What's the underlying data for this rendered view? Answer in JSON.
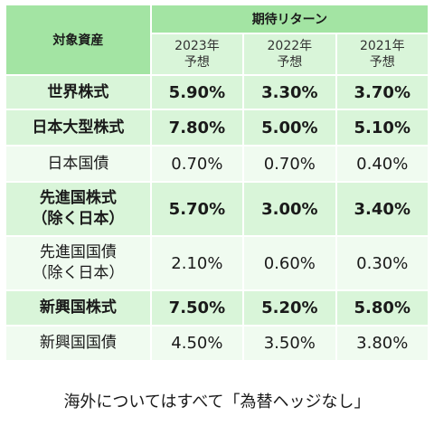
{
  "table": {
    "header": {
      "asset": "対象資産",
      "group": "期待リターン",
      "years": [
        {
          "year": "2023年",
          "sub": "予想"
        },
        {
          "year": "2022年",
          "sub": "予想"
        },
        {
          "year": "2021年",
          "sub": "予想"
        }
      ]
    },
    "rows": [
      {
        "asset": [
          "世界株式"
        ],
        "emphasis": true,
        "values": [
          "5.90%",
          "3.30%",
          "3.70%"
        ]
      },
      {
        "asset": [
          "日本大型株式"
        ],
        "emphasis": true,
        "values": [
          "7.80%",
          "5.00%",
          "5.10%"
        ]
      },
      {
        "asset": [
          "日本国債"
        ],
        "emphasis": false,
        "values": [
          "0.70%",
          "0.70%",
          "0.40%"
        ]
      },
      {
        "asset": [
          "先進国株式",
          "（除く日本）"
        ],
        "emphasis": true,
        "values": [
          "5.70%",
          "3.00%",
          "3.40%"
        ]
      },
      {
        "asset": [
          "先進国国債",
          "（除く日本）"
        ],
        "emphasis": false,
        "values": [
          "2.10%",
          "0.60%",
          "0.30%"
        ]
      },
      {
        "asset": [
          "新興国株式"
        ],
        "emphasis": true,
        "values": [
          "7.50%",
          "5.20%",
          "5.80%"
        ]
      },
      {
        "asset": [
          "新興国国債"
        ],
        "emphasis": false,
        "values": [
          "4.50%",
          "3.50%",
          "3.80%"
        ]
      }
    ]
  },
  "footnote": "海外についてはすべて「為替ヘッジなし」"
}
